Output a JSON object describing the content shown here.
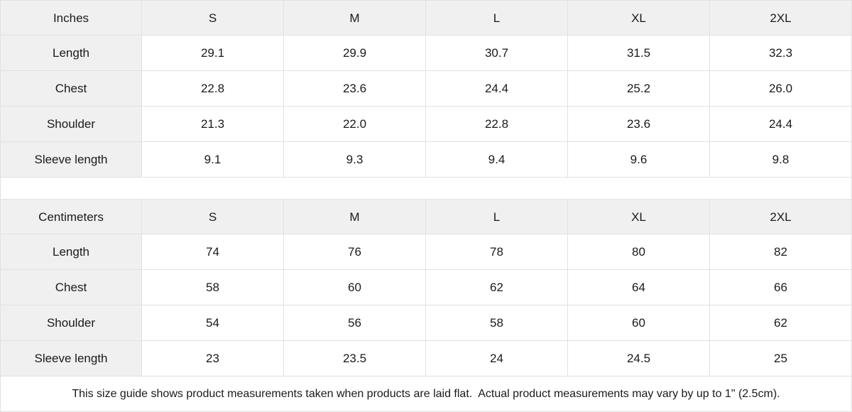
{
  "colors": {
    "header_bg": "#f0f0f0",
    "cell_bg": "#ffffff",
    "border": "#e1e1e1",
    "text": "#1a1a1a"
  },
  "inches_table": {
    "unit_label": "Inches",
    "sizes": [
      "S",
      "M",
      "L",
      "XL",
      "2XL"
    ],
    "rows": [
      {
        "label": "Length",
        "values": [
          "29.1",
          "29.9",
          "30.7",
          "31.5",
          "32.3"
        ]
      },
      {
        "label": "Chest",
        "values": [
          "22.8",
          "23.6",
          "24.4",
          "25.2",
          "26.0"
        ]
      },
      {
        "label": "Shoulder",
        "values": [
          "21.3",
          "22.0",
          "22.8",
          "23.6",
          "24.4"
        ]
      },
      {
        "label": "Sleeve length",
        "values": [
          "9.1",
          "9.3",
          "9.4",
          "9.6",
          "9.8"
        ]
      }
    ]
  },
  "centimeters_table": {
    "unit_label": "Centimeters",
    "sizes": [
      "S",
      "M",
      "L",
      "XL",
      "2XL"
    ],
    "rows": [
      {
        "label": "Length",
        "values": [
          "74",
          "76",
          "78",
          "80",
          "82"
        ]
      },
      {
        "label": "Chest",
        "values": [
          "58",
          "60",
          "62",
          "64",
          "66"
        ]
      },
      {
        "label": "Shoulder",
        "values": [
          "54",
          "56",
          "58",
          "60",
          "62"
        ]
      },
      {
        "label": "Sleeve length",
        "values": [
          "23",
          "23.5",
          "24",
          "24.5",
          "25"
        ]
      }
    ]
  },
  "footer": {
    "note": "This size guide shows product measurements taken when products are laid flat.  Actual product measurements may vary by up to 1\" (2.5cm)."
  }
}
